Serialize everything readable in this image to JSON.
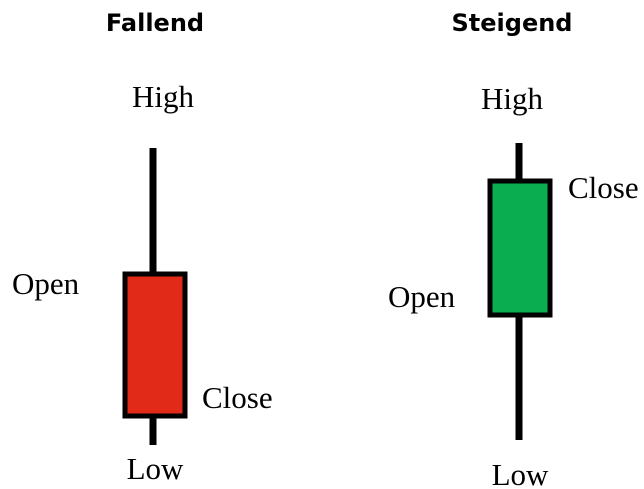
{
  "candles": [
    {
      "title": "Fallend",
      "labels": {
        "high": "High",
        "open": "Open",
        "close": "Close",
        "low": "Low"
      }
    },
    {
      "title": "Steigend",
      "labels": {
        "high": "High",
        "open": "Open",
        "close": "Close",
        "low": "Low"
      }
    }
  ]
}
